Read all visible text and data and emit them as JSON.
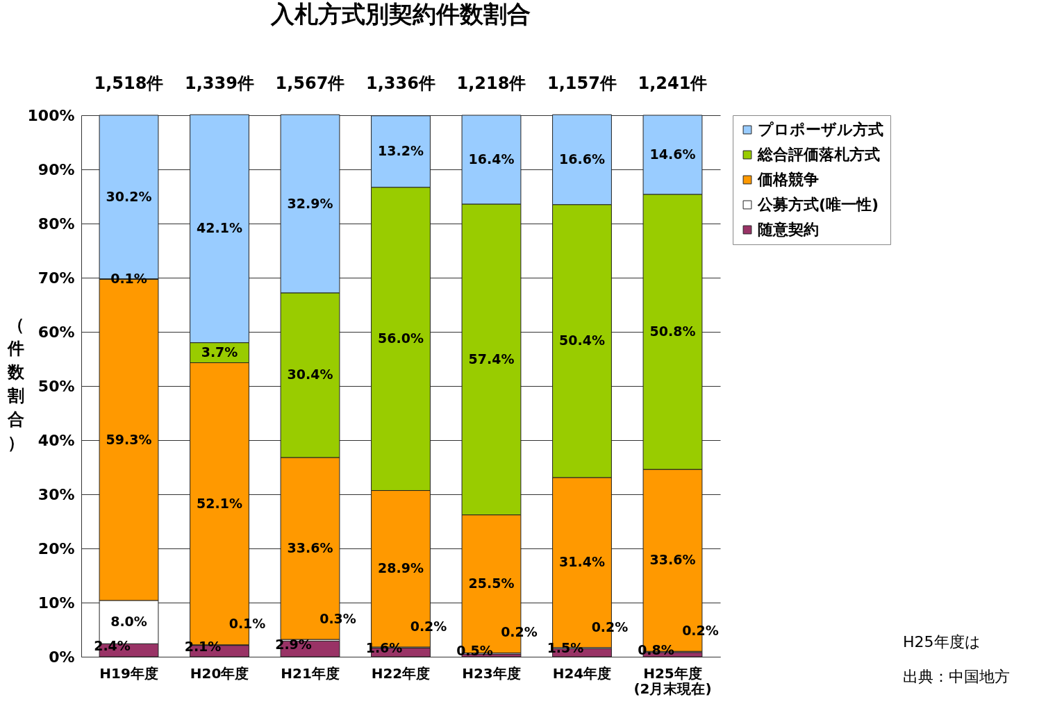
{
  "chart_data": {
    "type": "bar",
    "title": "入札方式別契約件数割合",
    "ylabel": "（件数割合）",
    "categories": [
      "H19年度",
      "H20年度",
      "H21年度",
      "H22年度",
      "H23年度",
      "H24年度",
      "H25年度\n(2月末現在)"
    ],
    "stacked": true,
    "series": [
      {
        "name": "随意契約",
        "color": "#993366",
        "values": [
          2.4,
          2.1,
          2.9,
          1.6,
          0.5,
          1.5,
          0.8
        ],
        "value_labels": [
          "2.4%",
          "2.1%",
          "2.9%",
          "1.6%",
          "0.5%",
          "1.5%",
          "0.8%"
        ]
      },
      {
        "name": "公募方式(唯一性)",
        "color": "#ffffff",
        "values": [
          8.0,
          0.1,
          0.3,
          0.2,
          0.2,
          0.2,
          0.2
        ],
        "value_labels": [
          "8.0%",
          "0.1%",
          "0.3%",
          "0.2%",
          "0.2%",
          "0.2%",
          "0.2%"
        ]
      },
      {
        "name": "価格競争",
        "color": "#ff9900",
        "values": [
          59.3,
          52.1,
          33.6,
          28.9,
          25.5,
          31.4,
          33.6
        ],
        "value_labels": [
          "59.3%",
          "52.1%",
          "33.6%",
          "28.9%",
          "25.5%",
          "31.4%",
          "33.6%"
        ]
      },
      {
        "name": "総合評価落札方式",
        "color": "#99cc00",
        "values": [
          0.1,
          3.7,
          30.4,
          56.0,
          57.4,
          50.4,
          50.8
        ],
        "value_labels": [
          "0.1%",
          "3.7%",
          "30.4%",
          "56.0%",
          "57.4%",
          "50.4%",
          "50.8%"
        ]
      },
      {
        "name": "プロポーザル方式",
        "color": "#99ccff",
        "values": [
          30.2,
          42.1,
          32.9,
          13.2,
          16.4,
          16.6,
          14.6
        ],
        "value_labels": [
          "30.2%",
          "42.1%",
          "32.9%",
          "13.2%",
          "16.4%",
          "16.6%",
          "14.6%"
        ]
      }
    ],
    "ylim": [
      0,
      100
    ],
    "yticks": [
      {
        "value": 0,
        "label": "0%"
      },
      {
        "value": 10,
        "label": "10%"
      },
      {
        "value": 20,
        "label": "20%"
      },
      {
        "value": 30,
        "label": "30%"
      },
      {
        "value": 40,
        "label": "40%"
      },
      {
        "value": 50,
        "label": "50%"
      },
      {
        "value": 60,
        "label": "60%"
      },
      {
        "value": 70,
        "label": "70%"
      },
      {
        "value": 80,
        "label": "80%"
      },
      {
        "value": 90,
        "label": "90%"
      },
      {
        "value": 100,
        "label": "100%"
      }
    ],
    "grid": "y",
    "legend": "right",
    "data_labels": true,
    "annotations": [
      {
        "text": "1,518件",
        "x": "H19年度",
        "y": 100
      },
      {
        "text": "1,339件",
        "x": "H20年度",
        "y": 100
      },
      {
        "text": "1,567件",
        "x": "H21年度",
        "y": 100
      },
      {
        "text": "1,336件",
        "x": "H22年度",
        "y": 100
      },
      {
        "text": "1,218件",
        "x": "H23年度",
        "y": 100
      },
      {
        "text": "1,157件",
        "x": "H24年度",
        "y": 100
      },
      {
        "text": "1,241件",
        "x": "H25年度\n(2月末現在)",
        "y": 100
      },
      "H25年度は",
      "出典：中国地方"
    ]
  }
}
